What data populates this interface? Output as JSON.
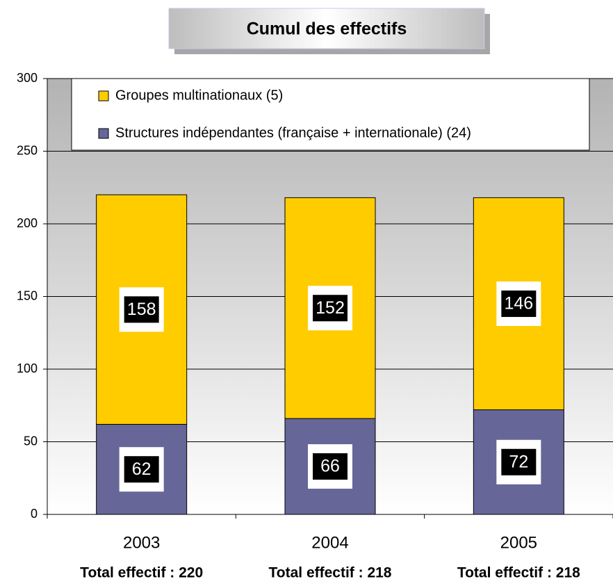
{
  "chart_data": {
    "type": "stacked_bar",
    "title": "Cumul des effectifs",
    "categories": [
      "2003",
      "2004",
      "2005"
    ],
    "category_notes": [
      "Total effectif : 220",
      "Total effectif : 218",
      "Total effectif : 218"
    ],
    "series": [
      {
        "name": "Structures indépendantes (française + internationale) (24)",
        "color": "#666699",
        "values": [
          62,
          66,
          72
        ]
      },
      {
        "name": "Groupes multinationaux (5)",
        "color": "#FFCC00",
        "values": [
          158,
          152,
          146
        ]
      }
    ],
    "ylim": [
      0,
      300
    ],
    "yticks": [
      0,
      50,
      100,
      150,
      200,
      250,
      300
    ],
    "grid": true,
    "legend": "top"
  }
}
